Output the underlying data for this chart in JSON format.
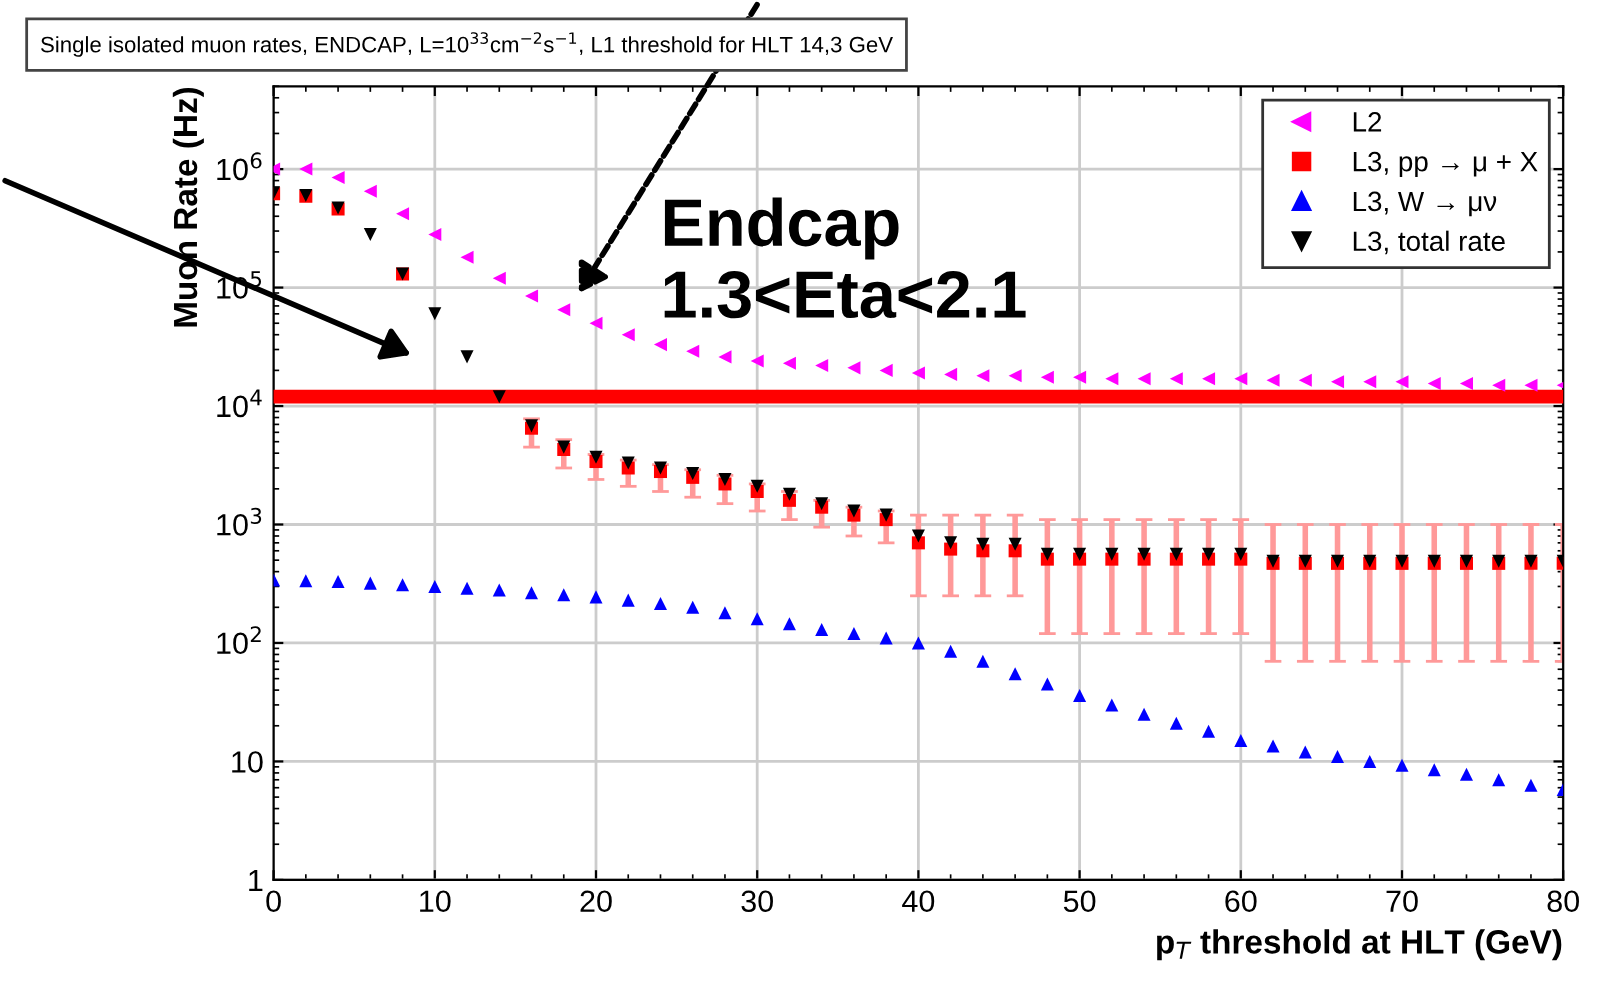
{
  "chart_data": {
    "type": "scatter",
    "title": "Single isolated muon rates, ENDCAP, L=10$^{33}$cm$^{−2}$s$^{−1}$, L1 threshold for HLT 14,3 GeV",
    "xlabel": "p$_{T}$ threshold at HLT (GeV)",
    "ylabel": "Muon Rate (Hz)",
    "x": [
      0,
      2,
      4,
      6,
      8,
      10,
      12,
      14,
      16,
      18,
      20,
      22,
      24,
      26,
      28,
      30,
      32,
      34,
      36,
      38,
      40,
      42,
      44,
      46,
      48,
      50,
      52,
      54,
      56,
      58,
      60,
      62,
      64,
      66,
      68,
      70,
      72,
      74,
      76,
      78,
      80
    ],
    "series": [
      {
        "name": "L2",
        "color": "#ff00ff",
        "marker": "triangle_left",
        "values": [
          1000000,
          1000000,
          850000,
          650000,
          420000,
          280000,
          180000,
          120000,
          85000,
          65000,
          50000,
          40000,
          33000,
          29000,
          26000,
          24000,
          23000,
          22000,
          21000,
          20000,
          19000,
          18500,
          18000,
          18000,
          17500,
          17500,
          17000,
          17000,
          17000,
          17000,
          17000,
          16500,
          16500,
          16000,
          16000,
          16000,
          15500,
          15500,
          15000,
          15000,
          15000
        ]
      },
      {
        "name": "L3, pp → μ + X",
        "color": "#ff0000",
        "marker": "square",
        "values": [
          620000,
          590000,
          460000,
          null,
          130000,
          null,
          null,
          null,
          6500,
          4300,
          3400,
          3000,
          2800,
          2500,
          2200,
          1900,
          1600,
          1400,
          1200,
          1100,
          700,
          620,
          600,
          600,
          510,
          510,
          510,
          510,
          510,
          510,
          510,
          470,
          470,
          470,
          470,
          470,
          470,
          470,
          470,
          470,
          470
        ],
        "errors": [
          null,
          null,
          null,
          null,
          null,
          null,
          null,
          null,
          [
            4500,
            7800
          ],
          [
            3000,
            5200
          ],
          [
            2400,
            3900
          ],
          [
            2100,
            3500
          ],
          [
            1900,
            3200
          ],
          [
            1700,
            2900
          ],
          [
            1500,
            2600
          ],
          [
            1300,
            2200
          ],
          [
            1100,
            1900
          ],
          [
            950,
            1600
          ],
          [
            800,
            1400
          ],
          [
            700,
            1300
          ],
          [
            250,
            1200
          ],
          [
            250,
            1200
          ],
          [
            250,
            1200
          ],
          [
            250,
            1200
          ],
          [
            120,
            1100
          ],
          [
            120,
            1100
          ],
          [
            120,
            1100
          ],
          [
            120,
            1100
          ],
          [
            120,
            1100
          ],
          [
            120,
            1100
          ],
          [
            120,
            1100
          ],
          [
            70,
            1000
          ],
          [
            70,
            1000
          ],
          [
            70,
            1000
          ],
          [
            70,
            1000
          ],
          [
            70,
            1000
          ],
          [
            70,
            1000
          ],
          [
            70,
            1000
          ],
          [
            70,
            1000
          ],
          [
            70,
            1000
          ],
          [
            70,
            1000
          ]
        ]
      },
      {
        "name": "L3, W → μν",
        "color": "#0000ff",
        "marker": "triangle",
        "values": [
          340,
          335,
          330,
          320,
          310,
          300,
          290,
          280,
          265,
          255,
          245,
          230,
          215,
          200,
          180,
          160,
          145,
          130,
          120,
          110,
          100,
          85,
          70,
          55,
          45,
          36,
          30,
          25,
          21,
          18,
          15,
          13.5,
          12,
          11,
          10,
          9.3,
          8.5,
          7.8,
          7,
          6.3,
          5.8
        ]
      },
      {
        "name": "L3, total rate",
        "color": "#000000",
        "marker": "triangle_down",
        "values": [
          630000,
          600000,
          470000,
          280000,
          130000,
          60000,
          26000,
          12000,
          6800,
          4500,
          3700,
          3300,
          3000,
          2700,
          2400,
          2100,
          1800,
          1500,
          1300,
          1200,
          800,
          700,
          680,
          680,
          560,
          560,
          560,
          560,
          560,
          560,
          560,
          490,
          490,
          490,
          490,
          490,
          490,
          490,
          490,
          490,
          490
        ]
      }
    ],
    "annotations": [
      "Endcap\n1.3<Eta<2.1"
    ],
    "ref_lines": [
      {
        "axis": "y",
        "value": 12000,
        "color": "#ff0000"
      }
    ],
    "log": "y",
    "xlim": [
      0,
      80
    ],
    "xticks": [
      0,
      10,
      20,
      30,
      40,
      50,
      60,
      70,
      80
    ],
    "ylim": [
      1,
      5000000
    ],
    "yticks": [
      1,
      10,
      {
        "value": 100,
        "label": "10$^{2}$"
      },
      {
        "value": 1000,
        "label": "10$^{3}$"
      },
      {
        "value": 10000,
        "label": "10$^{4}$"
      },
      {
        "value": 100000,
        "label": "10$^{5}$"
      },
      {
        "value": 1000000,
        "label": "10$^{6}$"
      }
    ],
    "grid": true,
    "legend": "top right"
  }
}
